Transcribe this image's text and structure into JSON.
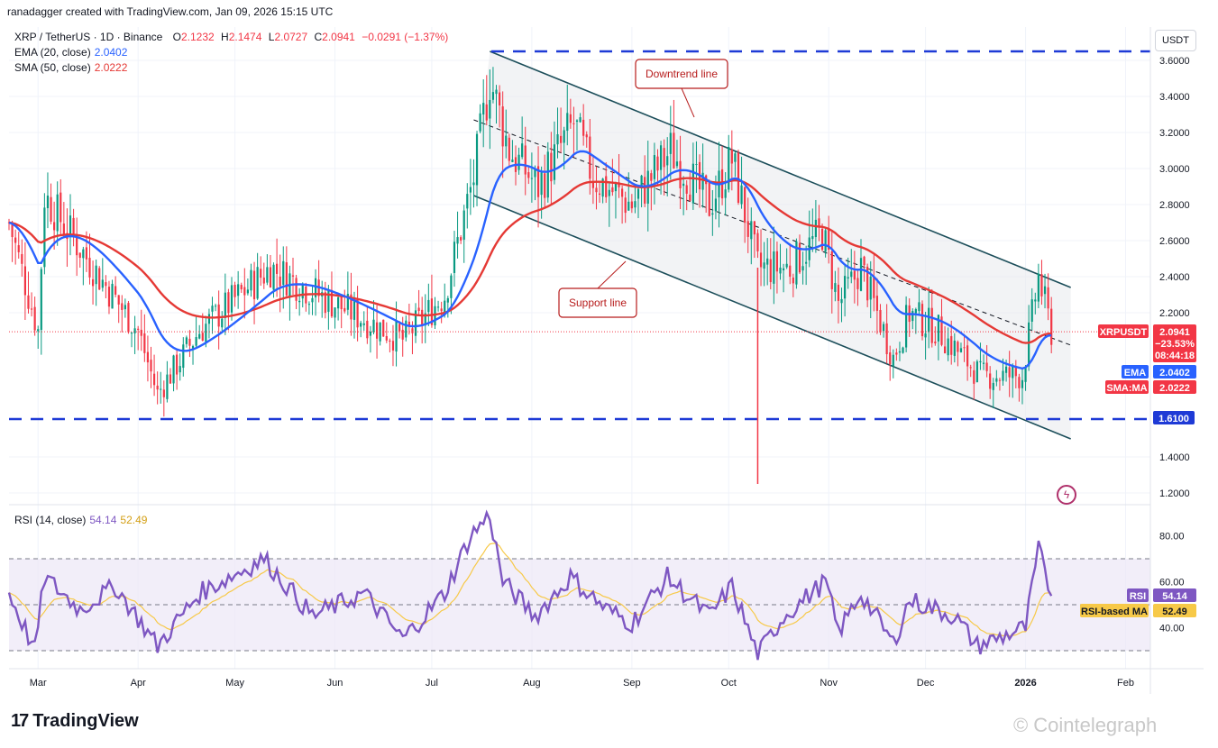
{
  "header": {
    "author_line": "ranadagger created with TradingView.com, Jan 09, 2026 15:15 UTC",
    "symbol": "XRP / TetherUS · 1D · Binance",
    "ohlc": {
      "O": "2.1232",
      "H": "2.1474",
      "L": "2.0727",
      "C": "2.0941",
      "change": "−0.0291 (−1.37%)"
    },
    "ema_label": "EMA (20, close)",
    "ema_value": "2.0402",
    "sma_label": "SMA (50, close)",
    "sma_value": "2.0222",
    "rsi_label": "RSI (14, close)",
    "rsi_value": "54.14",
    "rsi_ma_value": "52.49"
  },
  "currency_button": "USDT",
  "annotations": {
    "downtrend": "Downtrend line",
    "support": "Support line"
  },
  "badges": {
    "symbol": "XRPUSDT",
    "price": "2.0941",
    "change_pct": "−23.53%",
    "countdown": "08:44:18",
    "ema_tag": "EMA",
    "ema_val": "2.0402",
    "sma_tag": "SMA:MA",
    "sma_val": "2.0222",
    "level": "1.6100",
    "rsi_tag": "RSI",
    "rsi_val": "54.14",
    "rsi_ma_tag": "RSI-based MA",
    "rsi_ma_val": "52.49"
  },
  "footer": {
    "brand": "TradingView",
    "watermark": "Cointelegraph",
    "bolt_icon": "lightning-icon",
    "logo_icon": "tv-logo-icon"
  },
  "colors": {
    "up": "#089981",
    "down": "#f23645",
    "ema": "#2962ff",
    "sma": "#e53935",
    "rsi": "#7e57c2",
    "rsi_ma": "#f7c948",
    "level": "#1e3ad6",
    "channel": "#1c4e5a",
    "band": "#ede7f6"
  },
  "chart_data": [
    {
      "type": "candlestick",
      "title": "XRP / TetherUS · 1D · Binance",
      "x_ticks": [
        "Mar",
        "Apr",
        "May",
        "Jun",
        "Jul",
        "Aug",
        "Sep",
        "Oct",
        "Nov",
        "Dec",
        "2026",
        "Feb"
      ],
      "y_ticks": [
        "3.6000",
        "3.4000",
        "3.2000",
        "3.0000",
        "2.8000",
        "2.6000",
        "2.4000",
        "2.2000",
        "1.4000",
        "1.2000"
      ],
      "ylim": [
        1.2,
        3.6
      ],
      "anchors": [
        [
          "2025-02-20",
          2.7
        ],
        [
          "2025-03-01",
          2.1
        ],
        [
          "2025-03-03",
          2.85
        ],
        [
          "2025-03-20",
          2.4
        ],
        [
          "2025-04-01",
          2.1
        ],
        [
          "2025-04-07",
          1.75
        ],
        [
          "2025-04-20",
          2.1
        ],
        [
          "2025-05-12",
          2.45
        ],
        [
          "2025-06-01",
          2.25
        ],
        [
          "2025-06-22",
          2.05
        ],
        [
          "2025-07-05",
          2.3
        ],
        [
          "2025-07-14",
          2.95
        ],
        [
          "2025-07-19",
          3.5
        ],
        [
          "2025-07-25",
          3.1
        ],
        [
          "2025-08-03",
          2.9
        ],
        [
          "2025-08-14",
          3.25
        ],
        [
          "2025-08-20",
          2.95
        ],
        [
          "2025-09-01",
          2.8
        ],
        [
          "2025-09-13",
          3.1
        ],
        [
          "2025-09-25",
          2.8
        ],
        [
          "2025-10-02",
          3.05
        ],
        [
          "2025-10-10",
          2.45
        ],
        [
          "2025-10-20",
          2.45
        ],
        [
          "2025-10-30",
          2.65
        ],
        [
          "2025-11-04",
          2.25
        ],
        [
          "2025-11-11",
          2.45
        ],
        [
          "2025-11-21",
          1.95
        ],
        [
          "2025-11-26",
          2.2
        ],
        [
          "2025-12-05",
          2.1
        ],
        [
          "2025-12-18",
          1.85
        ],
        [
          "2025-12-31",
          1.85
        ],
        [
          "2026-01-05",
          2.4
        ],
        [
          "2026-01-09",
          2.0941
        ]
      ],
      "series": [
        {
          "name": "EMA (20, close)",
          "last": 2.0402
        },
        {
          "name": "SMA (50, close)",
          "last": 2.0222
        }
      ],
      "horizontal_lines": [
        3.65,
        1.61
      ],
      "trendlines": [
        {
          "label": "Downtrend line",
          "from": [
            "2025-07-19",
            3.65
          ],
          "to": [
            "2026-01-15",
            2.34
          ]
        },
        {
          "label": "Support line",
          "from": [
            "2025-07-14",
            2.85
          ],
          "to": [
            "2026-01-15",
            1.5
          ]
        },
        {
          "label": "",
          "from": [
            "2025-07-14",
            3.27
          ],
          "to": [
            "2026-01-15",
            2.02
          ],
          "style": "dashed"
        }
      ],
      "last_price": 2.0941
    },
    {
      "type": "line",
      "title": "RSI (14, close)",
      "y_ticks": [
        "80.00",
        "60.00",
        "40.00"
      ],
      "bands": [
        30,
        70
      ],
      "ylim": [
        25,
        95
      ],
      "anchors": [
        [
          "2025-02-20",
          55
        ],
        [
          "2025-02-28",
          30
        ],
        [
          "2025-03-03",
          62
        ],
        [
          "2025-03-14",
          48
        ],
        [
          "2025-03-25",
          58
        ],
        [
          "2025-04-07",
          32
        ],
        [
          "2025-04-20",
          55
        ],
        [
          "2025-05-10",
          70
        ],
        [
          "2025-05-25",
          45
        ],
        [
          "2025-06-10",
          55
        ],
        [
          "2025-06-22",
          35
        ],
        [
          "2025-07-05",
          55
        ],
        [
          "2025-07-13",
          80
        ],
        [
          "2025-07-19",
          89
        ],
        [
          "2025-07-23",
          60
        ],
        [
          "2025-08-02",
          45
        ],
        [
          "2025-08-13",
          62
        ],
        [
          "2025-08-24",
          48
        ],
        [
          "2025-09-01",
          42
        ],
        [
          "2025-09-12",
          62
        ],
        [
          "2025-09-25",
          45
        ],
        [
          "2025-10-02",
          58
        ],
        [
          "2025-10-10",
          28
        ],
        [
          "2025-10-18",
          45
        ],
        [
          "2025-10-31",
          60
        ],
        [
          "2025-11-04",
          38
        ],
        [
          "2025-11-11",
          55
        ],
        [
          "2025-11-21",
          33
        ],
        [
          "2025-11-26",
          52
        ],
        [
          "2025-12-10",
          45
        ],
        [
          "2025-12-17",
          32
        ],
        [
          "2026-01-01",
          40
        ],
        [
          "2026-01-05",
          74
        ],
        [
          "2026-01-09",
          54.14
        ]
      ],
      "series": [
        {
          "name": "RSI",
          "last": 54.14
        },
        {
          "name": "RSI-based MA",
          "last": 52.49
        }
      ]
    }
  ]
}
